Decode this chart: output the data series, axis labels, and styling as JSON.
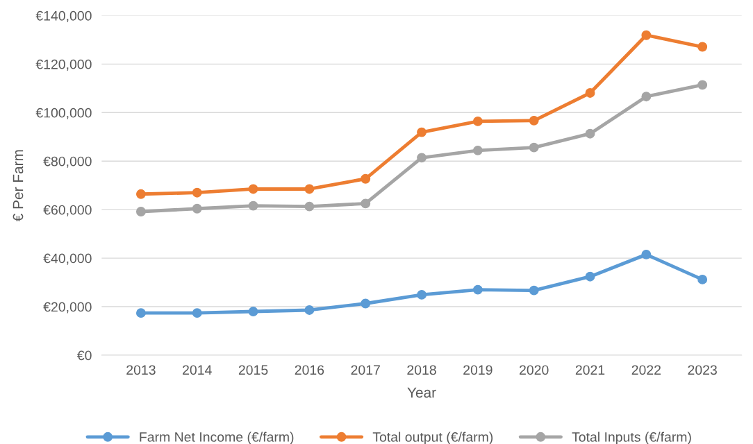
{
  "chart_data": {
    "type": "line",
    "xlabel": "Year",
    "ylabel": "€ Per Farm",
    "categories": [
      "2013",
      "2014",
      "2015",
      "2016",
      "2017",
      "2018",
      "2019",
      "2020",
      "2021",
      "2022",
      "2023"
    ],
    "series": [
      {
        "name": "Farm Net Income (€/farm)",
        "color": "#5b9bd5",
        "values": [
          17400,
          17400,
          18000,
          18600,
          21300,
          24900,
          27000,
          26700,
          32400,
          41500,
          31200
        ]
      },
      {
        "name": "Total output (€/farm)",
        "color": "#ed7d31",
        "values": [
          66400,
          67000,
          68500,
          68500,
          72700,
          91900,
          96400,
          96700,
          108100,
          131900,
          127100
        ]
      },
      {
        "name": "Total Inputs (€/farm)",
        "color": "#a5a5a5",
        "values": [
          59200,
          60400,
          61600,
          61300,
          62500,
          81400,
          84400,
          85600,
          91300,
          106600,
          111400
        ]
      }
    ],
    "ylim": [
      0,
      140000
    ],
    "yticks": [
      {
        "value": 0,
        "label": "€0"
      },
      {
        "value": 20000,
        "label": "€20,000"
      },
      {
        "value": 40000,
        "label": "€40,000"
      },
      {
        "value": 60000,
        "label": "€60,000"
      },
      {
        "value": 80000,
        "label": "€80,000"
      },
      {
        "value": 100000,
        "label": "€100,000"
      },
      {
        "value": 120000,
        "label": "€120,000"
      },
      {
        "value": 140000,
        "label": "€140,000"
      }
    ],
    "grid": "y",
    "legend": "bottom",
    "marker": "circle",
    "line_style": "solid"
  }
}
